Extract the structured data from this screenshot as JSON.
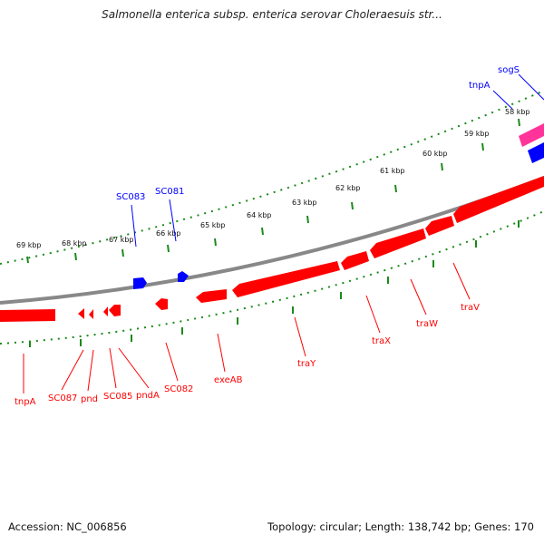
{
  "title": "Salmonella enterica subsp. enterica serovar Choleraesuis str...",
  "footer": {
    "accession": "Accession: NC_006856",
    "summary": "Topology: circular; Length: 138,742 bp; Genes: 170"
  },
  "colors": {
    "plus_strand": "#0000ff",
    "minus_strand": "#ff0000",
    "rna": "#ff3399",
    "backbone": "#888888",
    "ticks": "#1a8a1a"
  },
  "ticks": [
    "58 kbp",
    "59 kbp",
    "60 kbp",
    "61 kbp",
    "62 kbp",
    "63 kbp",
    "64 kbp",
    "65 kbp",
    "66 kbp",
    "67 kbp",
    "68 kbp",
    "69 kbp"
  ],
  "plus_labels": [
    "sogS",
    "tnpA",
    "SC081",
    "SC083"
  ],
  "minus_labels": [
    "tnpA",
    "SC087",
    "pnd",
    "SC085",
    "pndA",
    "SC082",
    "exeAB",
    "traY",
    "traX",
    "traW",
    "traV"
  ]
}
